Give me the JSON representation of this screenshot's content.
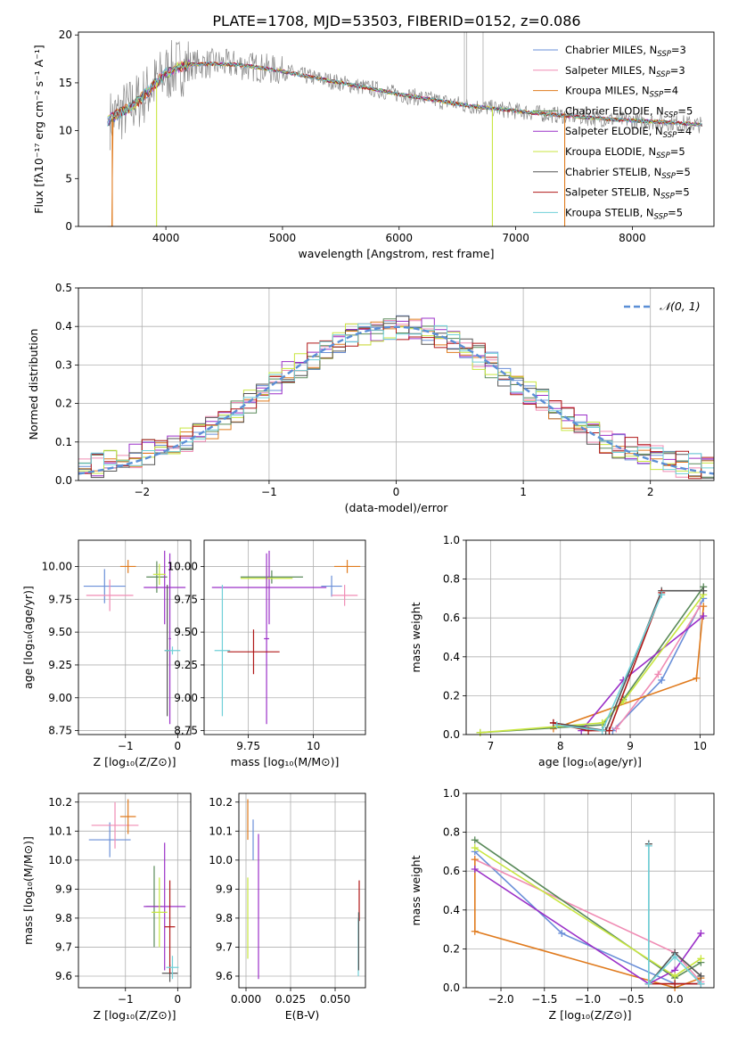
{
  "figure": {
    "title": "PLATE=1708, MJD=53503, FIBERID=0152, z=0.086"
  },
  "colors": {
    "Chabrier MILES": "#6a8fd8",
    "Salpeter MILES": "#f08cb4",
    "Kroupa MILES": "#e07b1e",
    "Chabrier ELODIE": "#5a8a5a",
    "Salpeter ELODIE": "#9b30c8",
    "Kroupa ELODIE": "#c8e640",
    "Chabrier STELIB": "#555555",
    "Salpeter STELIB": "#b01818",
    "Kroupa STELIB": "#70d0d8"
  },
  "chart_data": [
    {
      "id": "spectrum",
      "type": "line",
      "title": "PLATE=1708, MJD=53503, FIBERID=0152, z=0.086",
      "xlabel": "wavelength [Angstrom, rest frame]",
      "ylabel": "Flux [fλ10⁻¹⁷ erg cm⁻² s⁻¹ A⁻¹]",
      "xlim": [
        3250,
        8700
      ],
      "ylim": [
        0,
        20.3
      ],
      "xticks": [
        4000,
        5000,
        6000,
        7000,
        8000
      ],
      "yticks": [
        0,
        5,
        10,
        15,
        20
      ],
      "grid": false,
      "legend_position": "top-right",
      "data_color": "#888888",
      "continuum": {
        "x": [
          3500,
          3600,
          3700,
          3800,
          3900,
          4000,
          4100,
          4200,
          4400,
          4600,
          4800,
          5000,
          5200,
          5500,
          5800,
          6000,
          6300,
          6600,
          6900,
          7200,
          7500,
          7800,
          8100,
          8400,
          8600
        ],
        "y": [
          11.0,
          11.8,
          12.5,
          13.5,
          14.8,
          16.0,
          16.6,
          16.9,
          17.0,
          16.9,
          16.6,
          16.2,
          15.7,
          15.0,
          14.3,
          13.8,
          13.2,
          12.6,
          12.2,
          11.8,
          11.5,
          11.2,
          11.0,
          10.8,
          10.6
        ]
      },
      "legend": [
        {
          "label": "Chabrier MILES, N",
          "sub": "SSP",
          "suffix": "=3"
        },
        {
          "label": "Salpeter MILES, N",
          "sub": "SSP",
          "suffix": "=3"
        },
        {
          "label": "Kroupa MILES, N",
          "sub": "SSP",
          "suffix": "=4"
        },
        {
          "label": "Chabrier ELODIE, N",
          "sub": "SSP",
          "suffix": "=5"
        },
        {
          "label": "Salpeter ELODIE, N",
          "sub": "SSP",
          "suffix": "=4"
        },
        {
          "label": "Kroupa ELODIE, N",
          "sub": "SSP",
          "suffix": "=5"
        },
        {
          "label": "Chabrier STELIB, N",
          "sub": "SSP",
          "suffix": "=5"
        },
        {
          "label": "Salpeter STELIB, N",
          "sub": "SSP",
          "suffix": "=5"
        },
        {
          "label": "Kroupa STELIB, N",
          "sub": "SSP",
          "suffix": "=5"
        }
      ]
    },
    {
      "id": "residuals",
      "type": "line",
      "xlabel": "(data-model)/error",
      "ylabel": "Normed distribution",
      "xlim": [
        -2.5,
        2.5
      ],
      "ylim": [
        0,
        0.5
      ],
      "xticks": [
        -2,
        -1,
        0,
        1,
        2
      ],
      "yticks": [
        0.0,
        0.1,
        0.2,
        0.3,
        0.4,
        0.5
      ],
      "grid": true,
      "legend_position": "top-right",
      "legend": "𝒩(0, 1)",
      "gaussian": {
        "mean": 0,
        "sigma": 1
      }
    },
    {
      "id": "age-Z",
      "type": "scatter",
      "xlabel": "Z [log₁₀(Z/Z⊙)]",
      "ylabel": "age  [log₁₀(age/yr)]",
      "xlim": [
        -1.9,
        0.25
      ],
      "ylim": [
        8.72,
        10.2
      ],
      "xticks": [
        -1,
        0
      ],
      "yticks": [
        8.75,
        9.0,
        9.25,
        9.5,
        9.75,
        10.0
      ],
      "grid": true,
      "points": [
        {
          "model": "Chabrier MILES",
          "x": -1.4,
          "y": 9.85,
          "xerr": 0.4,
          "yerr": 0.13
        },
        {
          "model": "Salpeter MILES",
          "x": -1.3,
          "y": 9.78,
          "xerr": 0.45,
          "yerr": 0.12
        },
        {
          "model": "Kroupa MILES",
          "x": -0.95,
          "y": 10.0,
          "xerr": 0.15,
          "yerr": 0.05
        },
        {
          "model": "Chabrier ELODIE",
          "x": -0.4,
          "y": 9.92,
          "xerr": 0.2,
          "yerr": 0.12
        },
        {
          "model": "Salpeter ELODIE",
          "x": -0.25,
          "y": 9.84,
          "xerr": 0.4,
          "yerr": 0.28
        },
        {
          "model": "Kroupa ELODIE",
          "x": -0.35,
          "y": 9.94,
          "xerr": 0.12,
          "yerr": 0.08
        },
        {
          "model": "Salpeter ELODIE",
          "x": -0.15,
          "y": 9.45,
          "xerr": 0.02,
          "yerr": 0.65
        },
        {
          "model": "Chabrier STELIB",
          "x": -0.2,
          "y": 9.36,
          "xerr": 0.05,
          "yerr": 0.5
        },
        {
          "model": "Kroupa STELIB",
          "x": -0.1,
          "y": 9.36,
          "xerr": 0.15,
          "yerr": 0.03
        }
      ]
    },
    {
      "id": "age-mass",
      "type": "scatter",
      "xlabel": "mass [log₁₀(M/M⊙)]",
      "ylabel": "",
      "xlim": [
        9.58,
        10.2
      ],
      "ylim": [
        8.72,
        10.2
      ],
      "xticks": [
        9.75,
        10.0
      ],
      "yticks": [
        8.75,
        9.0,
        9.25,
        9.5,
        9.75,
        10.0
      ],
      "grid": true,
      "points": [
        {
          "model": "Chabrier MILES",
          "x": 10.07,
          "y": 9.85,
          "xerr": 0.04,
          "yerr": 0.08
        },
        {
          "model": "Salpeter MILES",
          "x": 10.12,
          "y": 9.78,
          "xerr": 0.05,
          "yerr": 0.08
        },
        {
          "model": "Kroupa MILES",
          "x": 10.13,
          "y": 10.0,
          "xerr": 0.05,
          "yerr": 0.05
        },
        {
          "model": "Chabrier ELODIE",
          "x": 9.84,
          "y": 9.92,
          "xerr": 0.12,
          "yerr": 0.05
        },
        {
          "model": "Salpeter ELODIE",
          "x": 9.83,
          "y": 9.84,
          "xerr": 0.22,
          "yerr": 0.28
        },
        {
          "model": "Kroupa ELODIE",
          "x": 9.82,
          "y": 9.91,
          "xerr": 0.1,
          "yerr": 0.08
        },
        {
          "model": "Salpeter ELODIE",
          "x": 9.82,
          "y": 9.45,
          "xerr": 0.01,
          "yerr": 0.65
        },
        {
          "model": "Salpeter STELIB",
          "x": 9.77,
          "y": 9.35,
          "xerr": 0.1,
          "yerr": 0.17
        },
        {
          "model": "Kroupa STELIB",
          "x": 9.65,
          "y": 9.36,
          "xerr": 0.03,
          "yerr": 0.5
        }
      ]
    },
    {
      "id": "weight-age",
      "type": "line",
      "xlabel": "age  [log₁₀(age/yr)]",
      "ylabel": "mass weight",
      "xlim": [
        6.65,
        10.2
      ],
      "ylim": [
        0,
        1.0
      ],
      "xticks": [
        7,
        8,
        9,
        10
      ],
      "yticks": [
        0.0,
        0.2,
        0.4,
        0.6,
        0.8,
        1.0
      ],
      "grid": true,
      "series": [
        {
          "model": "Chabrier MILES",
          "x": [
            8.75,
            9.45,
            10.05
          ],
          "y": [
            0.02,
            0.28,
            0.7
          ]
        },
        {
          "model": "Salpeter MILES",
          "x": [
            8.8,
            9.4,
            10.0
          ],
          "y": [
            0.03,
            0.31,
            0.66
          ]
        },
        {
          "model": "Kroupa MILES",
          "x": [
            7.9,
            9.95,
            10.05
          ],
          "y": [
            0.03,
            0.29,
            0.66
          ]
        },
        {
          "model": "Chabrier ELODIE",
          "x": [
            6.85,
            8.6,
            8.9,
            10.05
          ],
          "y": [
            0.01,
            0.05,
            0.18,
            0.76
          ]
        },
        {
          "model": "Salpeter ELODIE",
          "x": [
            8.3,
            8.9,
            10.05
          ],
          "y": [
            0.02,
            0.28,
            0.61
          ]
        },
        {
          "model": "Kroupa ELODIE",
          "x": [
            6.85,
            8.6,
            8.9,
            10.05
          ],
          "y": [
            0.01,
            0.06,
            0.17,
            0.72
          ]
        },
        {
          "model": "Chabrier STELIB",
          "x": [
            7.9,
            8.65,
            9.45,
            10.05
          ],
          "y": [
            0.06,
            0.02,
            0.74,
            0.74
          ]
        },
        {
          "model": "Salpeter STELIB",
          "x": [
            7.9,
            8.4,
            8.7,
            9.45
          ],
          "y": [
            0.06,
            0.02,
            0.02,
            0.73
          ]
        },
        {
          "model": "Kroupa STELIB",
          "x": [
            7.95,
            8.6,
            9.45
          ],
          "y": [
            0.05,
            0.02,
            0.72
          ]
        }
      ]
    },
    {
      "id": "mass-Z",
      "type": "scatter",
      "xlabel": "Z [log₁₀(Z/Z⊙)]",
      "ylabel": "mass [log₁₀(M/M⊙)]",
      "xlim": [
        -1.9,
        0.25
      ],
      "ylim": [
        9.56,
        10.23
      ],
      "xticks": [
        -1,
        0
      ],
      "yticks": [
        9.6,
        9.7,
        9.8,
        9.9,
        10.0,
        10.1,
        10.2
      ],
      "grid": true,
      "points": [
        {
          "model": "Chabrier MILES",
          "x": -1.3,
          "y": 10.07,
          "xerr": 0.4,
          "yerr": 0.06
        },
        {
          "model": "Salpeter MILES",
          "x": -1.2,
          "y": 10.12,
          "xerr": 0.45,
          "yerr": 0.08
        },
        {
          "model": "Kroupa MILES",
          "x": -0.95,
          "y": 10.15,
          "xerr": 0.15,
          "yerr": 0.06
        },
        {
          "model": "Chabrier ELODIE",
          "x": -0.45,
          "y": 9.84,
          "xerr": 0.15,
          "yerr": 0.14
        },
        {
          "model": "Salpeter ELODIE",
          "x": -0.25,
          "y": 9.84,
          "xerr": 0.4,
          "yerr": 0.22
        },
        {
          "model": "Kroupa ELODIE",
          "x": -0.35,
          "y": 9.82,
          "xerr": 0.15,
          "yerr": 0.12
        },
        {
          "model": "Chabrier STELIB",
          "x": -0.15,
          "y": 9.61,
          "xerr": 0.15,
          "yerr": 0.03
        },
        {
          "model": "Salpeter STELIB",
          "x": -0.15,
          "y": 9.77,
          "xerr": 0.1,
          "yerr": 0.16
        },
        {
          "model": "Kroupa STELIB",
          "x": -0.1,
          "y": 9.63,
          "xerr": 0.12,
          "yerr": 0.04
        }
      ]
    },
    {
      "id": "mass-EBV",
      "type": "scatter",
      "xlabel": "E(B-V)",
      "ylabel": "",
      "xlim": [
        -0.004,
        0.067
      ],
      "ylim": [
        9.56,
        10.23
      ],
      "xticks": [
        0.0,
        0.025,
        0.05
      ],
      "xticklabels": [
        "0.000",
        "0.025",
        "0.050"
      ],
      "yticks": [
        9.6,
        9.7,
        9.8,
        9.9,
        10.0,
        10.1,
        10.2
      ],
      "grid": true,
      "points": [
        {
          "model": "Kroupa MILES",
          "x": 0.001,
          "y": 10.14,
          "xerr": 0.0,
          "yerr": 0.07
        },
        {
          "model": "Chabrier MILES",
          "x": 0.004,
          "y": 10.07,
          "xerr": 0.0,
          "yerr": 0.07
        },
        {
          "model": "Kroupa ELODIE",
          "x": 0.001,
          "y": 9.8,
          "xerr": 0.0,
          "yerr": 0.14
        },
        {
          "model": "Salpeter ELODIE",
          "x": 0.007,
          "y": 9.84,
          "xerr": 0.0,
          "yerr": 0.25
        },
        {
          "model": "Salpeter STELIB",
          "x": 0.0635,
          "y": 9.86,
          "xerr": 0.0,
          "yerr": 0.07
        },
        {
          "model": "Kroupa STELIB",
          "x": 0.063,
          "y": 9.7,
          "xerr": 0.0,
          "yerr": 0.1
        },
        {
          "model": "Chabrier STELIB",
          "x": 0.0632,
          "y": 9.72,
          "xerr": 0.0,
          "yerr": 0.1
        }
      ]
    },
    {
      "id": "weight-Z",
      "type": "line",
      "xlabel": "Z [log₁₀(Z/Z⊙)]",
      "ylabel": "mass weight",
      "xlim": [
        -2.4,
        0.45
      ],
      "ylim": [
        0,
        1.0
      ],
      "xticks": [
        -2.0,
        -1.5,
        -1.0,
        -0.5,
        0.0
      ],
      "xticklabels": [
        "−2.0",
        "−1.5",
        "−1.0",
        "−0.5",
        "0.0"
      ],
      "yticks": [
        0.0,
        0.2,
        0.4,
        0.6,
        0.8,
        1.0
      ],
      "grid": true,
      "series": [
        {
          "model": "Chabrier MILES",
          "x": [
            -2.3,
            -1.3,
            0.0,
            0.3
          ],
          "y": [
            0.7,
            0.28,
            0.02,
            0.02
          ]
        },
        {
          "model": "Salpeter MILES",
          "x": [
            -2.3,
            0.0,
            0.3
          ],
          "y": [
            0.66,
            0.18,
            0.03
          ]
        },
        {
          "model": "Kroupa MILES",
          "x": [
            -2.3,
            -2.3,
            0.0,
            0.3
          ],
          "y": [
            0.66,
            0.29,
            0.0,
            0.05
          ]
        },
        {
          "model": "Chabrier ELODIE",
          "x": [
            -2.3,
            0.0,
            0.3
          ],
          "y": [
            0.76,
            0.05,
            0.13
          ]
        },
        {
          "model": "Salpeter ELODIE",
          "x": [
            -2.3,
            -0.3,
            0.0,
            0.3
          ],
          "y": [
            0.61,
            0.02,
            0.09,
            0.28
          ]
        },
        {
          "model": "Kroupa ELODIE",
          "x": [
            -2.3,
            0.0,
            0.3
          ],
          "y": [
            0.72,
            0.06,
            0.15
          ]
        },
        {
          "model": "Chabrier STELIB",
          "x": [
            -0.3,
            -0.3,
            0.0,
            0.3
          ],
          "y": [
            0.74,
            0.02,
            0.18,
            0.06
          ]
        },
        {
          "model": "Salpeter STELIB",
          "x": [
            -0.3,
            0.0,
            0.3
          ],
          "y": [
            0.02,
            0.02,
            0.02
          ]
        },
        {
          "model": "Kroupa STELIB",
          "x": [
            -0.3,
            -0.3,
            0.0,
            0.3
          ],
          "y": [
            0.73,
            0.02,
            0.16,
            0.02
          ]
        }
      ]
    }
  ]
}
